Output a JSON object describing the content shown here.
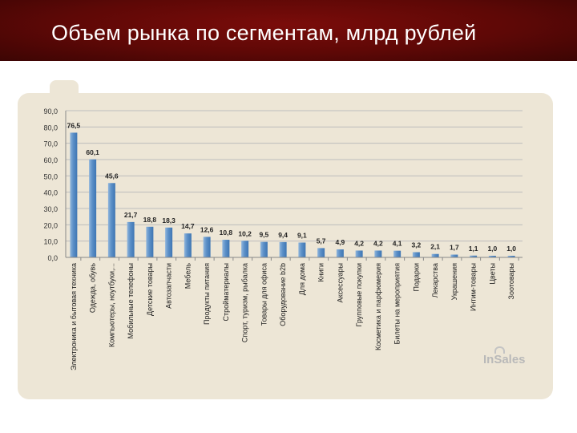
{
  "slide": {
    "title": "Объем рынка по сегментам, млрд рублей",
    "logo": "InSales"
  },
  "chart_data": {
    "type": "bar",
    "categories": [
      "Электроника и бытовая техника",
      "Одежда, обувь",
      "Компьютеры, ноутбуки,...",
      "Мобильные телефоны",
      "Детские товары",
      "Автозапчасти",
      "Мебель",
      "Продукты питания",
      "Стройматериалы",
      "Спорт, туризм, рыбалка",
      "Товары для офиса",
      "Оборудование b2b",
      "Для дома",
      "Книги",
      "Аксессуары",
      "Групповые покупки",
      "Косметика и парфюмерия",
      "Билеты на мероприятия",
      "Подарки",
      "Лекарства",
      "Украшения",
      "Интим-товары",
      "Цветы",
      "Зоотовары"
    ],
    "values": [
      76.5,
      60.1,
      45.6,
      21.7,
      18.8,
      18.3,
      14.7,
      12.6,
      10.8,
      10.2,
      9.5,
      9.4,
      9.1,
      5.7,
      4.9,
      4.2,
      4.2,
      4.1,
      3.2,
      2.1,
      1.7,
      1.1,
      1.0,
      1.0
    ],
    "value_labels": [
      "76,5",
      "60,1",
      "45,6",
      "21,7",
      "18,8",
      "18,3",
      "14,7",
      "12,6",
      "10,8",
      "10,2",
      "9,5",
      "9,4",
      "9,1",
      "5,7",
      "4,9",
      "4,2",
      "4,2",
      "4,1",
      "3,2",
      "2,1",
      "1,7",
      "1,1",
      "1,0",
      "1,0"
    ],
    "yticks": [
      "0,0",
      "10,0",
      "20,0",
      "30,0",
      "40,0",
      "50,0",
      "60,0",
      "70,0",
      "80,0",
      "90,0"
    ],
    "ylim": [
      0,
      90
    ],
    "grid": true,
    "colors": {
      "bar_light": "#8fb5dc",
      "bar_dark": "#3f76b3",
      "grid": "#bdbdbd"
    }
  }
}
